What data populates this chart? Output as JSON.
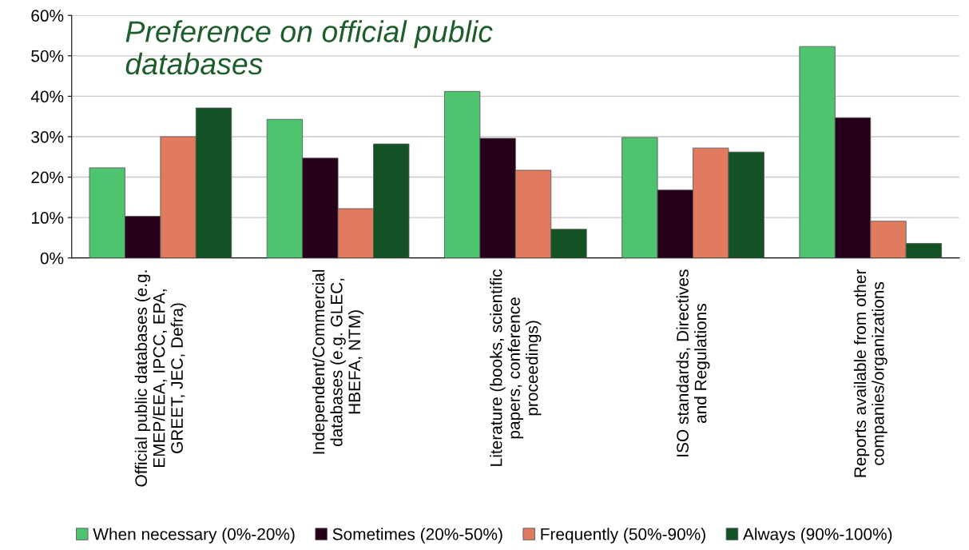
{
  "chart_data": {
    "type": "bar",
    "title": "Preference on official public\ndatabases",
    "categories": [
      "Official public databases (e.g.\nEMEP/EEA, IPCC, EPA,\nGREET, JEC, Defra)",
      "Independent/Commercial\ndatabases (e.g. GLEC,\nHBEFA, NTM)",
      "Literature (books, scientific\npapers, conference\nproceedings)",
      "ISO standards, Directives\nand Regulations",
      "Reports available from other\ncompanies/organizations"
    ],
    "series": [
      {
        "name": "When necessary (0%-20%)",
        "color": "#4fc46f",
        "values": [
          22.3,
          34.3,
          41.2,
          29.8,
          52.3
        ]
      },
      {
        "name": "Sometimes (20%-50%)",
        "color": "#26001b",
        "values": [
          10.3,
          24.7,
          29.6,
          16.8,
          34.7
        ]
      },
      {
        "name": "Frequently (50%-90%)",
        "color": "#e07b5f",
        "values": [
          30.0,
          12.2,
          21.7,
          27.2,
          9.1
        ]
      },
      {
        "name": "Always (90%-100%)",
        "color": "#135224",
        "values": [
          37.1,
          28.2,
          7.1,
          26.2,
          3.6
        ]
      }
    ],
    "ylim": [
      0,
      60
    ],
    "yticks": [
      {
        "value": 0,
        "label": "0%"
      },
      {
        "value": 10,
        "label": "10%"
      },
      {
        "value": 20,
        "label": "20%"
      },
      {
        "value": 30,
        "label": "30%"
      },
      {
        "value": 40,
        "label": "40%"
      },
      {
        "value": 50,
        "label": "50%"
      },
      {
        "value": 60,
        "label": "60%"
      }
    ],
    "grid": "y",
    "legend": "bottom"
  }
}
